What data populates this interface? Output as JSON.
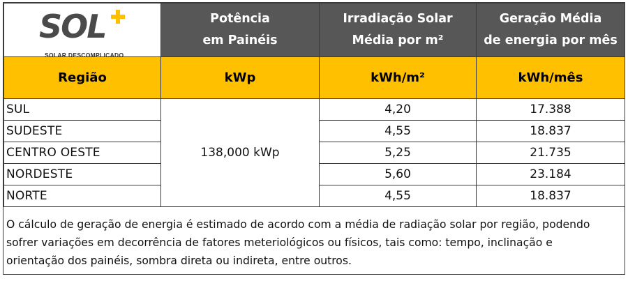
{
  "logo": {
    "brand": "SOL",
    "plus": "+",
    "tagline": "SOLAR DESCOMPLICADO",
    "accent_color": "#ffc000"
  },
  "header": {
    "power": [
      "Potência",
      "em Painéis"
    ],
    "irradiation": [
      "Irradiação Solar",
      "Média por m²"
    ],
    "generation": [
      "Geração Média",
      "de energia por mês"
    ],
    "background_color": "#575757"
  },
  "units": {
    "region": "Região",
    "power": "kWp",
    "irradiation": "kWh/m²",
    "generation": "kWh/mês",
    "background_color": "#ffc000"
  },
  "power_value": "138,000 kWp",
  "rows": [
    {
      "region": "SUL",
      "irradiation": "4,20",
      "generation": "17.388"
    },
    {
      "region": "SUDESTE",
      "irradiation": "4,55",
      "generation": "18.837"
    },
    {
      "region": "CENTRO OESTE",
      "irradiation": "5,25",
      "generation": "21.735"
    },
    {
      "region": "NORDESTE",
      "irradiation": "5,60",
      "generation": "23.184"
    },
    {
      "region": "NORTE",
      "irradiation": "4,55",
      "generation": "18.837"
    }
  ],
  "note": [
    "O cálculo de geração de energia é estimado de acordo com a média de radiação solar por região, podendo",
    "sofrer variações em decorrência de fatores meteriológicos ou físicos, tais como: tempo, inclinação e",
    "orientação dos painéis, sombra direta ou indireta, entre outros."
  ]
}
